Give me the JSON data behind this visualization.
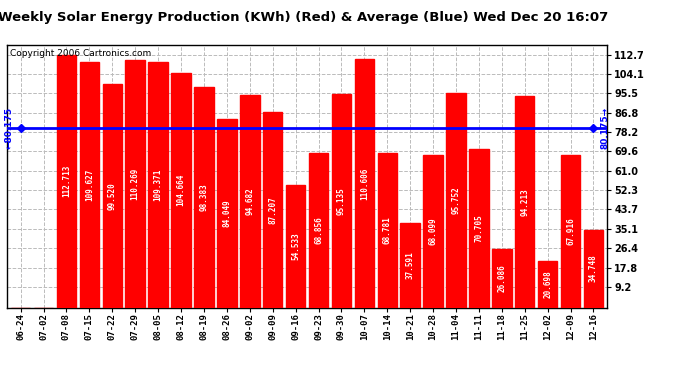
{
  "title": "Weekly Solar Energy Production (KWh) (Red) & Average (Blue) Wed Dec 20 16:07",
  "copyright": "Copyright 2006 Cartronics.com",
  "categories": [
    "06-24",
    "07-02",
    "07-08",
    "07-15",
    "07-22",
    "07-29",
    "08-05",
    "08-12",
    "08-19",
    "08-26",
    "09-02",
    "09-09",
    "09-16",
    "09-23",
    "09-30",
    "10-07",
    "10-14",
    "10-21",
    "10-28",
    "11-04",
    "11-11",
    "11-18",
    "11-25",
    "12-02",
    "12-09",
    "12-16"
  ],
  "values": [
    0.0,
    0.0,
    112.713,
    109.627,
    99.52,
    110.269,
    109.371,
    104.664,
    98.383,
    84.049,
    94.682,
    87.207,
    54.533,
    68.856,
    95.135,
    110.606,
    68.781,
    37.591,
    68.099,
    95.752,
    70.705,
    26.086,
    94.213,
    20.698,
    67.916,
    34.748
  ],
  "average": 80.175,
  "bar_color": "#FF0000",
  "avg_line_color": "#0000FF",
  "bg_color": "#FFFFFF",
  "plot_bg_color": "#FFFFFF",
  "grid_color": "#BBBBBB",
  "title_fontsize": 9.5,
  "copyright_fontsize": 6.5,
  "bar_label_fontsize": 5.5,
  "yticks": [
    9.2,
    17.8,
    26.4,
    35.1,
    43.7,
    52.3,
    61.0,
    69.6,
    78.2,
    86.8,
    95.5,
    104.1,
    112.7
  ],
  "ylim_min": 0.0,
  "ylim_max": 117.0
}
